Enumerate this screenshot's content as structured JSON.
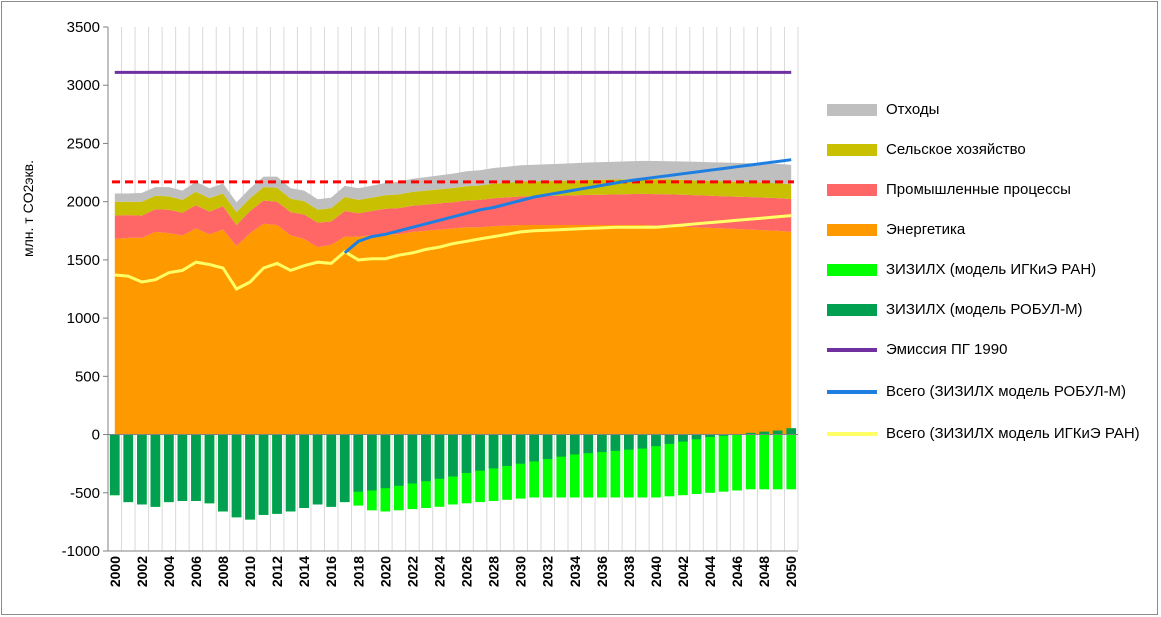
{
  "chart_data": {
    "type": "area",
    "title": "",
    "ylabel": "млн. т CO2экв.",
    "xlabel": "",
    "ylim": [
      -1000,
      3500
    ],
    "yticks": [
      -1000,
      -500,
      0,
      500,
      1000,
      1500,
      2000,
      2500,
      3000,
      3500
    ],
    "x": [
      2000,
      2001,
      2002,
      2003,
      2004,
      2005,
      2006,
      2007,
      2008,
      2009,
      2010,
      2011,
      2012,
      2013,
      2014,
      2015,
      2016,
      2017,
      2018,
      2019,
      2020,
      2021,
      2022,
      2023,
      2024,
      2025,
      2026,
      2027,
      2028,
      2029,
      2030,
      2031,
      2032,
      2033,
      2034,
      2035,
      2036,
      2037,
      2038,
      2039,
      2040,
      2041,
      2042,
      2043,
      2044,
      2045,
      2046,
      2047,
      2048,
      2049,
      2050
    ],
    "xtick_labels": [
      "2000",
      "2002",
      "2004",
      "2006",
      "2008",
      "2010",
      "2012",
      "2014",
      "2016",
      "2018",
      "2020",
      "2022",
      "2024",
      "2026",
      "2028",
      "2030",
      "2032",
      "2034",
      "2036",
      "2038",
      "2040",
      "2042",
      "2044",
      "2046",
      "2048",
      "2050"
    ],
    "stack_series": [
      {
        "name": "Энергетика",
        "color": "#FF9900",
        "values": [
          1680,
          1690,
          1690,
          1740,
          1730,
          1710,
          1770,
          1720,
          1760,
          1620,
          1730,
          1810,
          1800,
          1710,
          1680,
          1610,
          1630,
          1700,
          1700,
          1710,
          1720,
          1720,
          1740,
          1750,
          1760,
          1770,
          1780,
          1780,
          1790,
          1795,
          1800,
          1800,
          1800,
          1800,
          1800,
          1800,
          1800,
          1800,
          1800,
          1800,
          1795,
          1790,
          1785,
          1780,
          1775,
          1770,
          1765,
          1760,
          1755,
          1750,
          1740
        ]
      },
      {
        "name": "Промышленные процессы",
        "color": "#FF6666",
        "values": [
          200,
          195,
          190,
          195,
          200,
          195,
          200,
          195,
          200,
          180,
          190,
          200,
          200,
          200,
          210,
          210,
          200,
          220,
          200,
          210,
          220,
          225,
          225,
          225,
          225,
          225,
          230,
          235,
          240,
          242,
          245,
          248,
          250,
          252,
          255,
          258,
          260,
          262,
          265,
          267,
          270,
          272,
          274,
          275,
          276,
          277,
          278,
          279,
          280,
          281,
          282
        ]
      },
      {
        "name": "Сельское хозяйство",
        "color": "#C8C000",
        "values": [
          120,
          115,
          120,
          115,
          115,
          110,
          115,
          115,
          110,
          110,
          110,
          115,
          120,
          115,
          115,
          110,
          115,
          120,
          115,
          115,
          115,
          117,
          119,
          120,
          121,
          122,
          123,
          124,
          125,
          126,
          127,
          127,
          128,
          128,
          128,
          128,
          128,
          128,
          128,
          128,
          128,
          128,
          128,
          128,
          128,
          128,
          128,
          128,
          128,
          128,
          128
        ]
      },
      {
        "name": "Отходы",
        "color": "#BFBFBF",
        "values": [
          70,
          70,
          75,
          75,
          80,
          80,
          85,
          85,
          85,
          85,
          85,
          90,
          95,
          90,
          90,
          90,
          90,
          95,
          100,
          102,
          105,
          108,
          112,
          116,
          120,
          124,
          128,
          131,
          134,
          137,
          140,
          142,
          144,
          146,
          148,
          150,
          152,
          153,
          154,
          155,
          156,
          157,
          158,
          159,
          160,
          161,
          162,
          163,
          164,
          165,
          166
        ]
      }
    ],
    "bar_series": [
      {
        "name": "ЗИЗИЛХ (модель РОБУЛ-М)",
        "color": "#00A050",
        "values": [
          -520,
          -580,
          -600,
          -620,
          -580,
          -570,
          -570,
          -590,
          -660,
          -710,
          -730,
          -690,
          -680,
          -660,
          -630,
          -600,
          -620,
          -580,
          -490,
          -480,
          -460,
          -440,
          -420,
          -400,
          -380,
          -360,
          -330,
          -310,
          -290,
          -270,
          -250,
          -230,
          -210,
          -190,
          -170,
          -160,
          -150,
          -140,
          -130,
          -120,
          -100,
          -80,
          -60,
          -40,
          -20,
          -10,
          5,
          15,
          25,
          35,
          55
        ]
      },
      {
        "name": "ЗИЗИЛХ (модель ИГКиЭ РАН)",
        "color": "#00FF00",
        "values": [
          -520,
          -580,
          -600,
          -620,
          -580,
          -570,
          -570,
          -590,
          -660,
          -710,
          -730,
          -690,
          -680,
          -660,
          -630,
          -600,
          -620,
          -580,
          -610,
          -650,
          -660,
          -650,
          -640,
          -630,
          -620,
          -600,
          -590,
          -580,
          -570,
          -560,
          -550,
          -540,
          -540,
          -540,
          -540,
          -540,
          -540,
          -540,
          -540,
          -540,
          -540,
          -530,
          -520,
          -510,
          -500,
          -490,
          -480,
          -470,
          -470,
          -470,
          -470
        ]
      }
    ],
    "line_series": [
      {
        "name": "Эмиссия ПГ 1990",
        "color": "#7030A0",
        "values_const": 3110
      },
      {
        "name": "Всего (ЗИЗИЛХ модель РОБУЛ-М)",
        "color": "#1F7FE0",
        "x_start": 2017,
        "values": [
          1560,
          1660,
          1700,
          1720,
          1750,
          1780,
          1810,
          1840,
          1870,
          1900,
          1930,
          1950,
          1980,
          2010,
          2040,
          2060,
          2080,
          2100,
          2120,
          2140,
          2160,
          2180,
          2195,
          2210,
          2225,
          2240,
          2255,
          2270,
          2285,
          2300,
          2315,
          2330,
          2345,
          2360
        ]
      },
      {
        "name": "Всего (ЗИЗИЛХ модель ИГКиЭ РАН)",
        "color": "#FFFF66",
        "values": [
          1370,
          1360,
          1310,
          1330,
          1390,
          1410,
          1480,
          1460,
          1430,
          1250,
          1310,
          1430,
          1470,
          1410,
          1450,
          1480,
          1470,
          1570,
          1500,
          1510,
          1510,
          1540,
          1560,
          1590,
          1610,
          1640,
          1660,
          1680,
          1700,
          1720,
          1740,
          1750,
          1755,
          1760,
          1765,
          1770,
          1775,
          1780,
          1780,
          1780,
          1780,
          1790,
          1800,
          1810,
          1820,
          1830,
          1840,
          1850,
          1860,
          1870,
          1880
        ]
      }
    ],
    "reference_line": {
      "color": "#FF0000",
      "style": "dashed",
      "value": 2170
    },
    "grid": "vertical",
    "legend_position": "right"
  },
  "legend": {
    "items": [
      {
        "label": "Отходы",
        "color": "#BFBFBF",
        "kind": "box"
      },
      {
        "label": "Сельское хозяйство",
        "color": "#C8C000",
        "kind": "box"
      },
      {
        "label": "Промышленные процессы",
        "color": "#FF6666",
        "kind": "box"
      },
      {
        "label": "Энергетика",
        "color": "#FF9900",
        "kind": "box"
      },
      {
        "label": "ЗИЗИЛХ (модель ИГКиЭ РАН)",
        "color": "#00FF00",
        "kind": "box"
      },
      {
        "label": "ЗИЗИЛХ (модель РОБУЛ-М)",
        "color": "#00A050",
        "kind": "box"
      },
      {
        "label": "Эмиссия ПГ 1990",
        "color": "#7030A0",
        "kind": "line"
      },
      {
        "label": "Всего (ЗИЗИЛХ модель РОБУЛ-М)",
        "color": "#1F7FE0",
        "kind": "line"
      },
      {
        "label": "Всего (ЗИЗИЛХ модель ИГКиЭ РАН)",
        "color": "#FFFF66",
        "kind": "line"
      }
    ]
  }
}
